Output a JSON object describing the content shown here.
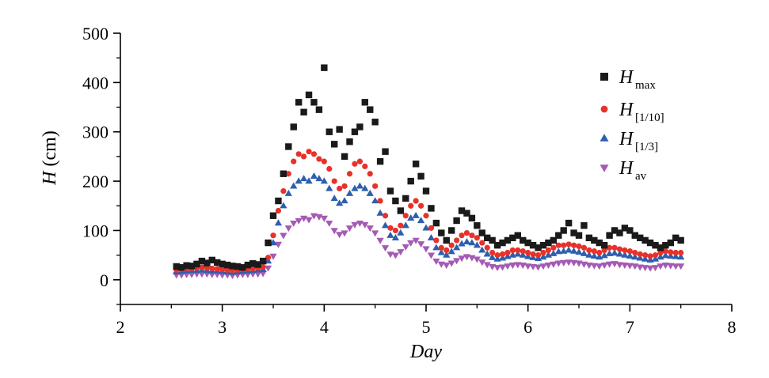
{
  "chart_data": {
    "type": "scatter",
    "title": "",
    "xlabel": "Day",
    "ylabel_italic": "H",
    "ylabel_unit": " (cm)",
    "xlim": [
      2,
      8
    ],
    "ylim": [
      -50,
      500
    ],
    "xticks": [
      2,
      3,
      4,
      5,
      6,
      7,
      8
    ],
    "yticks": [
      0,
      100,
      200,
      300,
      400,
      500
    ],
    "grid": false,
    "legend_position": "top-right",
    "series": [
      {
        "legend_main": "H",
        "legend_sub": "max",
        "marker": "square",
        "color": "#1a1a1a",
        "x": [
          2.55,
          2.6,
          2.65,
          2.7,
          2.75,
          2.8,
          2.85,
          2.9,
          2.95,
          3.0,
          3.05,
          3.1,
          3.15,
          3.2,
          3.25,
          3.3,
          3.35,
          3.4,
          3.45,
          3.5,
          3.55,
          3.6,
          3.65,
          3.7,
          3.75,
          3.8,
          3.85,
          3.9,
          3.95,
          4.0,
          4.05,
          4.1,
          4.15,
          4.2,
          4.25,
          4.3,
          4.35,
          4.4,
          4.45,
          4.5,
          4.55,
          4.6,
          4.65,
          4.7,
          4.75,
          4.8,
          4.85,
          4.9,
          4.95,
          5.0,
          5.05,
          5.1,
          5.15,
          5.2,
          5.25,
          5.3,
          5.35,
          5.4,
          5.45,
          5.5,
          5.55,
          5.6,
          5.65,
          5.7,
          5.75,
          5.8,
          5.85,
          5.9,
          5.95,
          6.0,
          6.05,
          6.1,
          6.15,
          6.2,
          6.25,
          6.3,
          6.35,
          6.4,
          6.45,
          6.5,
          6.55,
          6.6,
          6.65,
          6.7,
          6.75,
          6.8,
          6.85,
          6.9,
          6.95,
          7.0,
          7.05,
          7.1,
          7.15,
          7.2,
          7.25,
          7.3,
          7.35,
          7.4,
          7.45,
          7.5
        ],
        "values": [
          27,
          25,
          29,
          28,
          32,
          38,
          34,
          40,
          35,
          32,
          30,
          28,
          27,
          25,
          30,
          33,
          31,
          38,
          75,
          130,
          160,
          215,
          270,
          310,
          360,
          340,
          375,
          360,
          345,
          430,
          300,
          275,
          305,
          250,
          280,
          300,
          310,
          360,
          345,
          320,
          240,
          260,
          180,
          160,
          140,
          165,
          200,
          235,
          210,
          180,
          145,
          115,
          95,
          80,
          100,
          120,
          140,
          135,
          125,
          110,
          95,
          85,
          80,
          70,
          75,
          80,
          85,
          90,
          80,
          75,
          70,
          65,
          70,
          75,
          80,
          90,
          100,
          115,
          95,
          90,
          110,
          85,
          80,
          75,
          70,
          90,
          100,
          95,
          105,
          100,
          90,
          85,
          80,
          75,
          70,
          65,
          70,
          75,
          85,
          80
        ]
      },
      {
        "legend_main": "H",
        "legend_sub": "[1/10]",
        "marker": "circle",
        "color": "#e8312a",
        "x": [
          2.55,
          2.6,
          2.65,
          2.7,
          2.75,
          2.8,
          2.85,
          2.9,
          2.95,
          3.0,
          3.05,
          3.1,
          3.15,
          3.2,
          3.25,
          3.3,
          3.35,
          3.4,
          3.45,
          3.5,
          3.55,
          3.6,
          3.65,
          3.7,
          3.75,
          3.8,
          3.85,
          3.9,
          3.95,
          4.0,
          4.05,
          4.1,
          4.15,
          4.2,
          4.25,
          4.3,
          4.35,
          4.4,
          4.45,
          4.5,
          4.55,
          4.6,
          4.65,
          4.7,
          4.75,
          4.8,
          4.85,
          4.9,
          4.95,
          5.0,
          5.05,
          5.1,
          5.15,
          5.2,
          5.25,
          5.3,
          5.35,
          5.4,
          5.45,
          5.5,
          5.55,
          5.6,
          5.65,
          5.7,
          5.75,
          5.8,
          5.85,
          5.9,
          5.95,
          6.0,
          6.05,
          6.1,
          6.15,
          6.2,
          6.25,
          6.3,
          6.35,
          6.4,
          6.45,
          6.5,
          6.55,
          6.6,
          6.65,
          6.7,
          6.75,
          6.8,
          6.85,
          6.9,
          6.95,
          7.0,
          7.05,
          7.1,
          7.15,
          7.2,
          7.25,
          7.3,
          7.35,
          7.4,
          7.45,
          7.5
        ],
        "values": [
          20,
          21,
          22,
          23,
          24,
          25,
          24,
          23,
          22,
          21,
          20,
          19,
          20,
          21,
          22,
          23,
          24,
          26,
          45,
          90,
          140,
          180,
          215,
          240,
          255,
          250,
          260,
          255,
          245,
          240,
          225,
          200,
          185,
          190,
          215,
          235,
          240,
          230,
          215,
          190,
          160,
          130,
          105,
          100,
          110,
          130,
          150,
          160,
          150,
          130,
          105,
          80,
          65,
          60,
          70,
          80,
          90,
          95,
          90,
          85,
          75,
          65,
          55,
          50,
          52,
          55,
          60,
          60,
          58,
          55,
          52,
          50,
          55,
          60,
          65,
          70,
          70,
          72,
          70,
          68,
          65,
          60,
          58,
          55,
          60,
          65,
          65,
          62,
          60,
          58,
          55,
          52,
          50,
          48,
          50,
          55,
          58,
          56,
          55,
          55
        ]
      },
      {
        "legend_main": "H",
        "legend_sub": "[1/3]",
        "marker": "triangle-up",
        "color": "#2d5fae",
        "x": [
          2.55,
          2.6,
          2.65,
          2.7,
          2.75,
          2.8,
          2.85,
          2.9,
          2.95,
          3.0,
          3.05,
          3.1,
          3.15,
          3.2,
          3.25,
          3.3,
          3.35,
          3.4,
          3.45,
          3.5,
          3.55,
          3.6,
          3.65,
          3.7,
          3.75,
          3.8,
          3.85,
          3.9,
          3.95,
          4.0,
          4.05,
          4.1,
          4.15,
          4.2,
          4.25,
          4.3,
          4.35,
          4.4,
          4.45,
          4.5,
          4.55,
          4.6,
          4.65,
          4.7,
          4.75,
          4.8,
          4.85,
          4.9,
          4.95,
          5.0,
          5.05,
          5.1,
          5.15,
          5.2,
          5.25,
          5.3,
          5.35,
          5.4,
          5.45,
          5.5,
          5.55,
          5.6,
          5.65,
          5.7,
          5.75,
          5.8,
          5.85,
          5.9,
          5.95,
          6.0,
          6.05,
          6.1,
          6.15,
          6.2,
          6.25,
          6.3,
          6.35,
          6.4,
          6.45,
          6.5,
          6.55,
          6.6,
          6.65,
          6.7,
          6.75,
          6.8,
          6.85,
          6.9,
          6.95,
          7.0,
          7.05,
          7.1,
          7.15,
          7.2,
          7.25,
          7.3,
          7.35,
          7.4,
          7.45,
          7.5
        ],
        "values": [
          16,
          17,
          18,
          19,
          19,
          20,
          19,
          18,
          18,
          17,
          16,
          15,
          16,
          17,
          18,
          19,
          20,
          21,
          38,
          75,
          115,
          150,
          175,
          190,
          200,
          205,
          200,
          210,
          205,
          200,
          185,
          165,
          155,
          160,
          175,
          185,
          190,
          185,
          175,
          160,
          135,
          110,
          90,
          85,
          95,
          110,
          125,
          130,
          120,
          105,
          85,
          65,
          55,
          50,
          57,
          65,
          73,
          77,
          75,
          70,
          60,
          52,
          45,
          42,
          44,
          47,
          50,
          52,
          50,
          47,
          45,
          43,
          46,
          50,
          53,
          57,
          58,
          60,
          58,
          56,
          53,
          50,
          48,
          46,
          49,
          53,
          54,
          52,
          50,
          48,
          46,
          44,
          42,
          40,
          42,
          46,
          49,
          48,
          47,
          46
        ]
      },
      {
        "legend_main": "H",
        "legend_sub": "av",
        "marker": "triangle-down",
        "color": "#a55ab4",
        "x": [
          2.55,
          2.6,
          2.65,
          2.7,
          2.75,
          2.8,
          2.85,
          2.9,
          2.95,
          3.0,
          3.05,
          3.1,
          3.15,
          3.2,
          3.25,
          3.3,
          3.35,
          3.4,
          3.45,
          3.5,
          3.55,
          3.6,
          3.65,
          3.7,
          3.75,
          3.8,
          3.85,
          3.9,
          3.95,
          4.0,
          4.05,
          4.1,
          4.15,
          4.2,
          4.25,
          4.3,
          4.35,
          4.4,
          4.45,
          4.5,
          4.55,
          4.6,
          4.65,
          4.7,
          4.75,
          4.8,
          4.85,
          4.9,
          4.95,
          5.0,
          5.05,
          5.1,
          5.15,
          5.2,
          5.25,
          5.3,
          5.35,
          5.4,
          5.45,
          5.5,
          5.55,
          5.6,
          5.65,
          5.7,
          5.75,
          5.8,
          5.85,
          5.9,
          5.95,
          6.0,
          6.05,
          6.1,
          6.15,
          6.2,
          6.25,
          6.3,
          6.35,
          6.4,
          6.45,
          6.5,
          6.55,
          6.6,
          6.65,
          6.7,
          6.75,
          6.8,
          6.85,
          6.9,
          6.95,
          7.0,
          7.05,
          7.1,
          7.15,
          7.2,
          7.25,
          7.3,
          7.35,
          7.4,
          7.45,
          7.5
        ],
        "values": [
          10,
          10,
          11,
          11,
          12,
          12,
          12,
          11,
          11,
          10,
          10,
          9,
          10,
          11,
          11,
          12,
          12,
          13,
          24,
          48,
          72,
          90,
          105,
          115,
          120,
          125,
          122,
          130,
          128,
          125,
          115,
          100,
          92,
          95,
          105,
          112,
          115,
          112,
          105,
          95,
          80,
          65,
          52,
          50,
          57,
          67,
          75,
          80,
          73,
          63,
          50,
          38,
          32,
          30,
          34,
          39,
          44,
          47,
          45,
          42,
          36,
          31,
          27,
          25,
          26,
          28,
          30,
          31,
          30,
          28,
          27,
          26,
          28,
          30,
          32,
          34,
          35,
          36,
          35,
          34,
          32,
          30,
          29,
          28,
          30,
          32,
          33,
          31,
          30,
          29,
          28,
          26,
          25,
          24,
          25,
          28,
          30,
          29,
          28,
          28
        ]
      }
    ]
  }
}
